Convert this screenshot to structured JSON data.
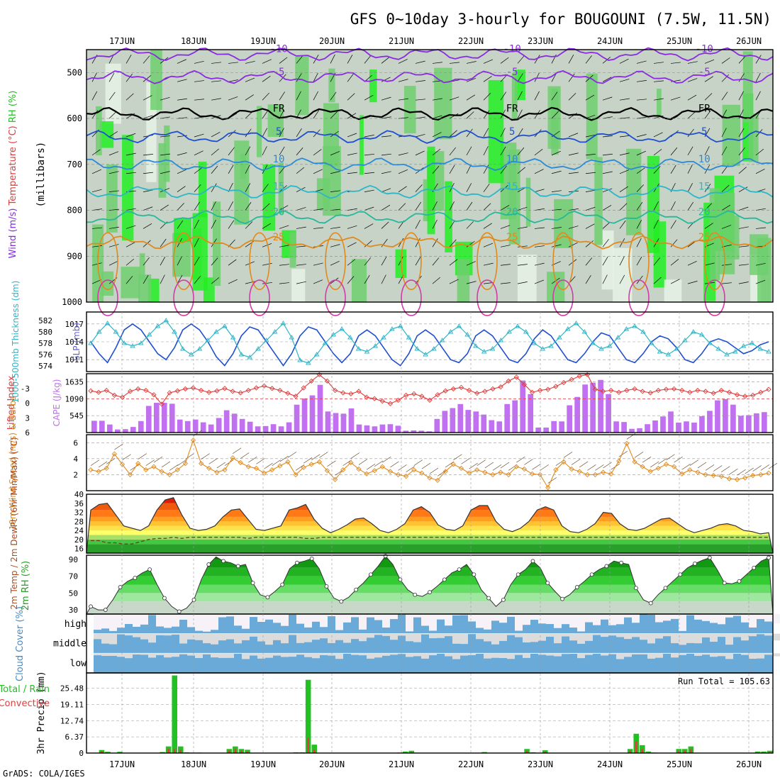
{
  "title": "GFS 0~10day 3-hourly for BOUGOUNI (7.5W, 11.5N)",
  "credit": "GrADS: COLA/IGES",
  "dates": [
    "17JUN",
    "18JUN",
    "19JUN",
    "20JUN",
    "21JUN",
    "22JUN",
    "23JUN",
    "24JUN",
    "25JUN",
    "26JUN"
  ],
  "colors": {
    "purple": "#8a2be2",
    "blue": "#1f4fd0",
    "cyan": "#2cb6c8",
    "orange": "#e08a1e",
    "red": "#e03c3c",
    "green": "#22c022",
    "sky": "#6aaad8"
  },
  "chart_data": [
    {
      "type": "heatmap",
      "name": "upper-air",
      "title": "Wind (m/s), Temperature (°C), RH (%)",
      "ylabel": "(millibars)",
      "ylim": [
        1000,
        450
      ],
      "yticks": [
        500,
        600,
        700,
        800,
        900,
        1000
      ],
      "legend_labels": [
        "Wind (m/s)",
        "Temperature (°C)",
        "RH (%)"
      ],
      "isotherms": [
        {
          "label": "-10",
          "level_mb": 460,
          "color": "#8a2be2"
        },
        {
          "label": "-5",
          "level_mb": 510,
          "color": "#8a2be2"
        },
        {
          "label": "FR",
          "level_mb": 590,
          "color": "#000000"
        },
        {
          "label": "5",
          "level_mb": 640,
          "color": "#1f4fd0"
        },
        {
          "label": "10",
          "level_mb": 700,
          "color": "#2a8ad8"
        },
        {
          "label": "15",
          "level_mb": 760,
          "color": "#2cb6c8"
        },
        {
          "label": "20",
          "level_mb": 815,
          "color": "#26b89a"
        },
        {
          "label": "25",
          "level_mb": 870,
          "color": "#e08a1e"
        }
      ]
    },
    {
      "type": "line",
      "name": "thickness-slp",
      "ylabel_left": "1000-500mb Thickness (dm)",
      "ylabel_right": "SLP (mb)",
      "yticks_left": [
        574,
        576,
        578,
        580,
        582
      ],
      "yticks_right": [
        1011,
        1014,
        1017
      ],
      "series": [
        {
          "name": "SLP",
          "color": "#1f4fd0",
          "values": [
            1014,
            1012,
            1010.5,
            1013,
            1016,
            1017,
            1016,
            1014,
            1012,
            1011,
            1013,
            1016,
            1017,
            1016,
            1014,
            1011.5,
            1010,
            1012,
            1015,
            1016.5,
            1016,
            1014,
            1012,
            1010,
            1012,
            1015,
            1016.5,
            1016,
            1014,
            1012,
            1010.5,
            1012,
            1015,
            1016,
            1015,
            1013,
            1011,
            1010,
            1012,
            1015,
            1016,
            1015,
            1013,
            1011,
            1010.5,
            1012,
            1015,
            1016,
            1015,
            1013,
            1011,
            1010.5,
            1012,
            1014.5,
            1016,
            1015,
            1013,
            1011,
            1010.5,
            1012,
            1014,
            1015.5,
            1015,
            1013,
            1011,
            1010.5,
            1012,
            1014,
            1015,
            1014.5,
            1013,
            1011,
            1010.5,
            1012,
            1014,
            1014.5,
            1014,
            1013,
            1012,
            1012.5,
            1013.5,
            1014
          ]
        },
        {
          "name": "Thickness",
          "color": "#2cb6c8",
          "values": [
            578,
            580,
            581.5,
            580,
            578,
            577.5,
            578,
            579.5,
            581,
            582,
            580,
            577,
            576,
            577,
            578.5,
            580,
            581,
            579,
            576,
            575.5,
            577,
            578.5,
            580,
            581.5,
            579,
            575,
            574.5,
            576,
            578,
            579.5,
            580.5,
            579,
            577,
            576.5,
            577.5,
            579,
            580.5,
            581,
            579,
            577,
            576,
            577,
            578.5,
            580,
            581,
            579.5,
            577.5,
            576.5,
            577,
            578.5,
            580,
            581,
            580,
            578,
            577,
            577.5,
            579,
            580.5,
            581.5,
            580,
            578,
            577,
            577.5,
            579,
            580.5,
            581,
            580,
            578,
            576.5,
            576,
            577,
            578.5,
            580,
            579.5,
            578,
            577,
            576,
            576.5,
            577.5,
            578,
            577,
            576.5
          ]
        }
      ]
    },
    {
      "type": "bar",
      "name": "cape-lifted-index",
      "ylabel_left": "Lifted Index",
      "ylabel_right": "CAPE (J/kg)",
      "yticks_left": [
        6,
        3,
        0,
        -3
      ],
      "yticks_right": [
        545,
        1090,
        1635
      ],
      "series": [
        {
          "name": "CAPE",
          "color": "#c070f0",
          "values": [
            380,
            380,
            260,
            100,
            110,
            180,
            370,
            860,
            960,
            960,
            930,
            420,
            370,
            420,
            330,
            260,
            470,
            720,
            610,
            440,
            350,
            200,
            210,
            270,
            200,
            330,
            900,
            1100,
            1200,
            1540,
            680,
            630,
            610,
            780,
            260,
            230,
            200,
            260,
            270,
            220,
            60,
            70,
            60,
            40,
            440,
            700,
            790,
            920,
            730,
            680,
            580,
            400,
            360,
            920,
            1040,
            1680,
            1240,
            160,
            160,
            370,
            360,
            880,
            1150,
            1550,
            1610,
            1700,
            1240,
            360,
            340,
            120,
            140,
            270,
            390,
            520,
            680,
            320,
            360,
            320,
            530,
            700,
            1040,
            1080,
            900,
            540,
            560,
            620,
            660
          ]
        },
        {
          "name": "Lifted Index",
          "color": "#e03c3c",
          "values": [
            -2.5,
            -2.2,
            -2.6,
            -1.6,
            -1.2,
            -2.4,
            -2.9,
            -2.6,
            -1.7,
            0.2,
            -2.1,
            -2.5,
            -2.9,
            -3.1,
            -2.6,
            -2.2,
            -2.5,
            -3.0,
            -2.4,
            -2.1,
            -2.6,
            -3.1,
            -3.5,
            -3.0,
            -2.6,
            -2.0,
            -1.4,
            -3.1,
            -4.5,
            -5.8,
            -4.5,
            -2.6,
            -2.1,
            -1.9,
            -2.4,
            -1.2,
            -0.9,
            -0.4,
            0.1,
            -0.6,
            -1.6,
            -1.9,
            -1.4,
            -0.6,
            -1.7,
            -2.5,
            -2.9,
            -3.2,
            -2.6,
            -2.0,
            -2.4,
            -2.9,
            -3.3,
            -4.5,
            -5.3,
            -3.8,
            -2.2,
            -2.6,
            -2.8,
            -3.4,
            -4.2,
            -4.8,
            -5.5,
            -5.8,
            -2.8,
            -2.4,
            -2.6,
            -2.2,
            -2.6,
            -2.9,
            -2.4,
            -2.1,
            -2.6,
            -2.8,
            -2.9,
            -2.6,
            -2.2,
            -2.6,
            -2.4,
            -2.0,
            -2.6,
            -2.2,
            -1.7,
            -1.4,
            -1.6,
            -2.2,
            -2.8
          ]
        }
      ]
    },
    {
      "type": "line",
      "name": "wind10m",
      "ylabel": "10m Wind Speed (m/s) & Barbs",
      "yticks": [
        2,
        4,
        6
      ],
      "series": [
        {
          "name": "10m Wind Speed",
          "color": "#e08a1e",
          "values": [
            2.6,
            2.4,
            2.8,
            4.6,
            3.3,
            2.0,
            3.4,
            2.6,
            3.0,
            2.4,
            2.0,
            2.6,
            3.4,
            6.3,
            3.4,
            2.8,
            2.3,
            2.6,
            4.1,
            3.5,
            3.0,
            2.8,
            2.2,
            2.6,
            3.1,
            3.6,
            2.0,
            2.9,
            3.3,
            3.6,
            2.5,
            1.4,
            2.6,
            3.5,
            2.7,
            2.1,
            2.5,
            3.0,
            2.4,
            2.0,
            1.8,
            2.6,
            2.2,
            1.6,
            1.3,
            2.4,
            3.3,
            2.8,
            2.2,
            2.6,
            2.3,
            2.0,
            2.3,
            2.0,
            3.0,
            2.7,
            2.1,
            2.0,
            0.4,
            2.6,
            3.6,
            2.7,
            2.4,
            2.0,
            2.0,
            2.3,
            2.1,
            3.7,
            5.9,
            3.6,
            3.0,
            2.4,
            2.8,
            3.3,
            3.0,
            2.1,
            2.6,
            2.3,
            2.0,
            1.9,
            1.8,
            1.5,
            1.4,
            1.6,
            1.9,
            2.0,
            2.2
          ]
        }
      ]
    },
    {
      "type": "area",
      "name": "temperature",
      "ylabel": "2m Temp / 2m DewPt (6hr Min/Max) (°C)",
      "yticks": [
        16,
        20,
        24,
        28,
        32,
        36,
        40
      ],
      "series": [
        {
          "name": "2m Temp",
          "values": [
            33,
            35.5,
            36,
            31,
            26,
            25,
            24,
            26,
            33,
            37.5,
            38.5,
            31,
            25,
            24,
            24.5,
            26,
            30,
            33,
            33.5,
            29,
            24.5,
            24,
            25,
            26,
            33,
            34,
            35.5,
            29,
            25,
            23,
            24.5,
            26.5,
            29,
            29.5,
            27,
            24,
            23,
            24.5,
            27,
            33,
            34.5,
            32,
            26.5,
            24.5,
            24,
            26,
            33,
            35,
            35,
            28,
            24.5,
            23.5,
            25,
            28,
            33,
            34.5,
            33,
            26,
            23.5,
            23,
            24.5,
            27,
            32,
            31.5,
            27,
            24.5,
            24,
            25,
            27,
            29,
            29.5,
            27,
            24.5,
            23,
            24,
            25,
            26.5,
            27,
            26,
            24,
            23.5,
            22.5,
            23
          ]
        },
        {
          "name": "2m DewPt",
          "values": [
            19.5,
            19.5,
            18.5,
            18.5,
            18,
            18,
            19,
            20,
            20.5,
            20.5,
            21,
            20.5,
            21,
            21,
            21,
            21,
            21,
            21,
            21,
            20.5,
            21,
            21,
            21,
            21,
            21,
            21,
            20.5,
            20.5,
            21,
            21,
            21,
            21,
            21,
            21,
            21,
            21,
            21,
            21,
            21,
            21,
            21,
            21,
            21,
            21,
            21,
            21,
            21,
            21,
            21,
            21,
            21,
            21,
            21,
            21,
            21,
            21,
            21,
            21,
            21,
            21,
            21,
            21,
            21,
            21,
            21,
            21,
            21,
            21,
            21,
            21,
            21,
            21,
            21,
            21,
            21,
            21,
            21,
            21,
            21,
            21,
            21,
            21,
            21
          ]
        }
      ]
    },
    {
      "type": "area",
      "name": "rh2m",
      "ylabel": "2m RH (%)",
      "yticks": [
        30,
        50,
        70,
        90
      ],
      "series": [
        {
          "name": "2m RH",
          "values": [
            34,
            30,
            30,
            42,
            57,
            64,
            68,
            74,
            78,
            60,
            44,
            34,
            28,
            32,
            42,
            66,
            84,
            93,
            88,
            86,
            82,
            84,
            62,
            48,
            45,
            52,
            60,
            79,
            86,
            88,
            91,
            79,
            58,
            44,
            40,
            45,
            54,
            62,
            72,
            82,
            94,
            84,
            66,
            54,
            48,
            46,
            51,
            58,
            66,
            74,
            78,
            84,
            72,
            54,
            44,
            34,
            42,
            60,
            72,
            78,
            88,
            80,
            62,
            52,
            43,
            48,
            57,
            64,
            72,
            78,
            82,
            88,
            86,
            84,
            56,
            42,
            38,
            48,
            56,
            64,
            72,
            80,
            85,
            89,
            92,
            78,
            62,
            61,
            64,
            72,
            80,
            88,
            92
          ]
        }
      ]
    },
    {
      "type": "heatmap",
      "name": "cloud-cover",
      "ylabel": "Cloud Cover (%)",
      "row_labels": [
        "high",
        "middle",
        "low"
      ]
    },
    {
      "type": "bar",
      "name": "precip",
      "ylabel": "3hr Precip (mm)",
      "legend_labels": [
        "Total / Rain",
        "Convective"
      ],
      "yticks": [
        0,
        6.37,
        12.74,
        19.11,
        25.48
      ],
      "annotation": "Run Total = 105.63",
      "series": [
        {
          "name": "Total",
          "color": "#22c022",
          "values": [
            0,
            0,
            1.2,
            0.5,
            0,
            0.5,
            0,
            0,
            0,
            0,
            0,
            0,
            0.4,
            2.6,
            30.5,
            2.6,
            0.3,
            0.2,
            0.2,
            0,
            0.1,
            0,
            0,
            1.6,
            2.6,
            1.6,
            1.3,
            0,
            0,
            0,
            0,
            0,
            0,
            0,
            0.3,
            0.3,
            28.8,
            3.3,
            0,
            0,
            0,
            0,
            0,
            0,
            0,
            0,
            0,
            0,
            0,
            0,
            0,
            0.2,
            0.6,
            0.9,
            0,
            0,
            0,
            0,
            0,
            0,
            0,
            0,
            0,
            0,
            0,
            0.4,
            0,
            0,
            0,
            0,
            0,
            0,
            1.6,
            0.3,
            0,
            1.1,
            0,
            0,
            0,
            0,
            0,
            0,
            0,
            0,
            0,
            0,
            0,
            0,
            0,
            1.6,
            7.6,
            3.1,
            0.6,
            0.2,
            0,
            0,
            0,
            1.6,
            1.6,
            2.6,
            0,
            0,
            0,
            0,
            0,
            0,
            0,
            0,
            0,
            0,
            0.6,
            0.6,
            0.9
          ]
        },
        {
          "name": "Convective",
          "color": "#e03c3c",
          "values": [
            0,
            0,
            0.8,
            0.3,
            0,
            0.3,
            0,
            0,
            0,
            0,
            0,
            0,
            0.2,
            1.6,
            1.6,
            1.3,
            0,
            0,
            0.1,
            0,
            0,
            0,
            0,
            1.0,
            1.6,
            1.0,
            0.6,
            0,
            0,
            0,
            0,
            0,
            0,
            0,
            0.1,
            0.2,
            6.0,
            1.3,
            0,
            0,
            0,
            0,
            0,
            0,
            0,
            0,
            0,
            0,
            0,
            0,
            0,
            0,
            0.3,
            0.4,
            0,
            0,
            0,
            0,
            0,
            0,
            0,
            0,
            0,
            0,
            0,
            0.2,
            0,
            0,
            0,
            0,
            0,
            0,
            0.9,
            0,
            0,
            0.5,
            0,
            0,
            0,
            0,
            0,
            0,
            0,
            0,
            0,
            0,
            0,
            0,
            0,
            1.0,
            4.6,
            1.6,
            0.3,
            0,
            0,
            0,
            0,
            0.9,
            1.0,
            1.6,
            0,
            0,
            0,
            0,
            0,
            0,
            0,
            0,
            0,
            0,
            0.3,
            0.3,
            0.4
          ]
        }
      ]
    }
  ]
}
